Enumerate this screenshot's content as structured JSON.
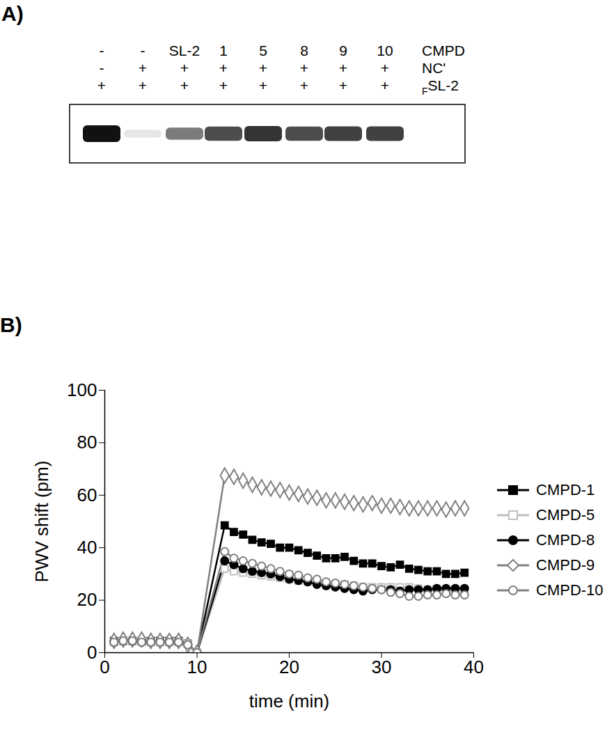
{
  "panel_a": {
    "panel_label": "A)",
    "rows": [
      {
        "label": "CMPD",
        "values": [
          "-",
          "-",
          "SL-2",
          "1",
          "5",
          "8",
          "9",
          "10"
        ]
      },
      {
        "label": "NC'",
        "values": [
          "-",
          "+",
          "+",
          "+",
          "+",
          "+",
          "+",
          "+"
        ]
      },
      {
        "label": "SL-2",
        "subscript_prefix": "F",
        "values": [
          "+",
          "+",
          "+",
          "+",
          "+",
          "+",
          "+",
          "+"
        ]
      }
    ],
    "band_intensity": [
      100,
      10,
      55,
      75,
      85,
      75,
      80,
      80
    ],
    "intensity_range": [
      0,
      100
    ]
  },
  "chart_data": {
    "panel_label": "B)",
    "type": "line",
    "x_label": "time (min)",
    "y_label": "PWV shift (pm)",
    "x": [
      1,
      2,
      3,
      4,
      5,
      6,
      7,
      8,
      9,
      10,
      13,
      14,
      15,
      16,
      17,
      18,
      19,
      20,
      21,
      22,
      23,
      24,
      25,
      26,
      27,
      28,
      29,
      30,
      31,
      32,
      33,
      34,
      35,
      36,
      37,
      38,
      39
    ],
    "xlim": [
      0,
      40
    ],
    "xticks": [
      0,
      10,
      20,
      30,
      40
    ],
    "ylim": [
      0,
      100
    ],
    "yticks": [
      0,
      20,
      40,
      60,
      80,
      100
    ],
    "grid": false,
    "legend": "right",
    "series": [
      {
        "name": "CMPD-1",
        "color": "#000000",
        "marker": "filled-square",
        "values": [
          4.5,
          4.5,
          4.5,
          4.5,
          4.5,
          4.5,
          4.5,
          4.5,
          3.5,
          0,
          48.5,
          46,
          45,
          43,
          42,
          41.5,
          40,
          40,
          39,
          38,
          37,
          36,
          36,
          36.5,
          35,
          34,
          34,
          33,
          32.5,
          33.5,
          32,
          31.5,
          31,
          31,
          30,
          30,
          30.5
        ]
      },
      {
        "name": "CMPD-5",
        "color": "#bfbfbf",
        "marker": "open-square",
        "values": [
          4,
          4.5,
          4.5,
          4.5,
          4,
          4,
          4,
          4,
          3.5,
          0,
          32,
          31,
          30.5,
          30,
          29.5,
          29,
          28.5,
          28,
          27.5,
          27,
          27,
          26.5,
          26,
          26,
          25.5,
          25,
          25,
          25,
          25,
          25,
          25,
          24.5,
          24,
          24,
          23.5,
          23,
          23
        ]
      },
      {
        "name": "CMPD-8",
        "color": "#000000",
        "marker": "filled-circle",
        "values": [
          4,
          4.5,
          4.5,
          4,
          4,
          4,
          4,
          4,
          3,
          0,
          35,
          33.5,
          32,
          31,
          30.5,
          30,
          29,
          28,
          27.5,
          27,
          26,
          25.5,
          25,
          24.5,
          24,
          23.5,
          24,
          24,
          24,
          23.5,
          24,
          24,
          24,
          24.5,
          24.5,
          24.5,
          24.5
        ]
      },
      {
        "name": "CMPD-9",
        "color": "#808080",
        "marker": "open-diamond",
        "values": [
          4.5,
          5,
          5,
          5,
          4.5,
          4.5,
          4.5,
          4.5,
          3,
          0,
          67.5,
          67,
          65.5,
          64,
          63,
          62.5,
          62,
          61,
          60.5,
          59.5,
          59,
          58,
          58,
          57.5,
          57,
          56.5,
          57,
          56,
          56,
          55.5,
          55,
          55,
          55,
          55,
          54.5,
          55,
          55
        ]
      },
      {
        "name": "CMPD-10",
        "color": "#7f7f7f",
        "marker": "open-circle",
        "values": [
          4,
          4.5,
          4.5,
          4,
          4,
          4,
          4,
          4,
          3,
          0,
          38.5,
          36,
          35,
          34,
          33,
          32,
          31,
          30,
          29.5,
          28.5,
          28,
          27,
          26.5,
          26,
          25.5,
          25,
          24.5,
          24,
          23,
          22.5,
          21.5,
          21.5,
          22,
          22,
          22.5,
          22,
          22
        ]
      }
    ]
  }
}
